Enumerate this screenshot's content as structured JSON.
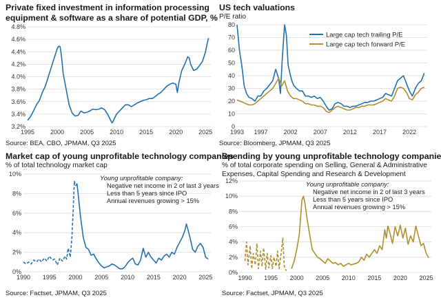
{
  "charts": [
    {
      "id": "p1",
      "title_lines": [
        "Private fixed investment in information processing",
        "equipment & software as a share of potential GDP, %"
      ],
      "subtitle_lines": [],
      "source": "Source: BEA, CBO, JPMAM, Q3 2025",
      "annotation": null,
      "colors": {
        "series": "#1f6fb2"
      }
    },
    {
      "id": "p2",
      "title_lines": [
        "US tech valuations"
      ],
      "subtitle_lines": [
        "P/E ratio"
      ],
      "source": "Source: Bloomberg, JPMAM, Q3 2025",
      "annotation": null,
      "colors": {
        "trailing": "#1f6fb2",
        "forward": "#b08d2a"
      }
    },
    {
      "id": "p3",
      "title_lines": [
        "Market cap of young unprofitable technology companies"
      ],
      "subtitle_lines": [
        "% of total technology market cap"
      ],
      "source": "Source: Factset, JPMAM, Q3 2025",
      "annotation": {
        "heading": "Young unprofitable company:",
        "lines": [
          "Negative net income in 2 of last 3 years",
          "Less than 5 years since IPO",
          "Annual revenues growing > 15%"
        ]
      },
      "colors": {
        "series": "#1f6fb2"
      }
    },
    {
      "id": "p4",
      "title_lines": [
        "Spending by young unprofitable technology companies"
      ],
      "subtitle_lines": [
        "% of total corporate spending on Selling, General & Administrative",
        "Expenses, Capital Spending and Research & Development"
      ],
      "source": "Source: Factset, JPMAM, Q3 2025",
      "annotation": {
        "heading": "Young unprofitable company:",
        "lines": [
          "Negative net income in 2 of last 3 years",
          "Less than 5 years since IPO",
          "Annual revenues growing > 15%"
        ]
      },
      "colors": {
        "series": "#b08d2a"
      }
    }
  ],
  "chart_data": [
    {
      "type": "line",
      "title": "Private fixed investment in information processing equipment & software as a share of potential GDP, %",
      "xlim": [
        1995,
        2025.9
      ],
      "ylim": [
        3.2,
        4.8
      ],
      "x_ticks": [
        1995,
        2000,
        2005,
        2010,
        2015,
        2020,
        2025
      ],
      "y_ticks": [
        3.2,
        3.4,
        3.6,
        3.8,
        4.0,
        4.2,
        4.4,
        4.6,
        4.8
      ],
      "y_tick_labels": [
        "3.2%",
        "3.4%",
        "3.6%",
        "3.8%",
        "4.0%",
        "4.2%",
        "4.4%",
        "4.6%",
        "4.8%"
      ],
      "series": [
        {
          "x": [
            1995.0,
            1995.5,
            1996.0,
            1996.5,
            1997.0,
            1997.5,
            1998.0,
            1998.5,
            1999.0,
            1999.5,
            2000.0,
            2000.25,
            2000.5,
            2000.75,
            2001.0,
            2001.5,
            2002.0,
            2002.5,
            2003.0,
            2003.5,
            2004.0,
            2004.5,
            2005.0,
            2005.5,
            2006.0,
            2006.5,
            2007.0,
            2007.5,
            2008.0,
            2008.5,
            2009.0,
            2009.25,
            2009.5,
            2010.0,
            2010.5,
            2011.0,
            2011.5,
            2012.0,
            2012.5,
            2013.0,
            2013.5,
            2014.0,
            2014.5,
            2015.0,
            2015.5,
            2016.0,
            2016.5,
            2017.0,
            2017.5,
            2018.0,
            2018.5,
            2019.0,
            2019.5,
            2020.0,
            2020.25,
            2020.5,
            2021.0,
            2021.5,
            2022.0,
            2022.25,
            2022.5,
            2023.0,
            2023.5,
            2024.0,
            2024.5,
            2025.0,
            2025.25,
            2025.5
          ],
          "y": [
            3.3,
            3.36,
            3.45,
            3.55,
            3.62,
            3.75,
            3.85,
            4.0,
            4.15,
            4.3,
            4.45,
            4.49,
            4.48,
            4.3,
            4.05,
            3.8,
            3.55,
            3.42,
            3.37,
            3.38,
            3.45,
            3.42,
            3.43,
            3.45,
            3.48,
            3.47,
            3.48,
            3.5,
            3.47,
            3.4,
            3.3,
            3.26,
            3.3,
            3.4,
            3.45,
            3.5,
            3.55,
            3.55,
            3.52,
            3.55,
            3.58,
            3.6,
            3.62,
            3.63,
            3.65,
            3.65,
            3.68,
            3.72,
            3.75,
            3.8,
            3.85,
            3.88,
            3.9,
            3.88,
            3.75,
            3.9,
            4.1,
            4.2,
            4.32,
            4.3,
            4.2,
            4.1,
            4.12,
            4.18,
            4.25,
            4.4,
            4.52,
            4.62
          ]
        }
      ]
    },
    {
      "type": "line",
      "title": "US tech valuations",
      "ylabel": "P/E ratio",
      "xlim": [
        1993,
        2025
      ],
      "ylim": [
        0,
        80
      ],
      "x_ticks": [
        1993,
        1997,
        2002,
        2007,
        2012,
        2017,
        2022
      ],
      "y_ticks": [
        0,
        10,
        20,
        30,
        40,
        50,
        60,
        70,
        80
      ],
      "legend": "top-right",
      "series": [
        {
          "name": "Large cap tech trailing P/E",
          "x": [
            1993.0,
            1993.4,
            1993.8,
            1994.2,
            1994.6,
            1995.0,
            1995.5,
            1996.0,
            1996.5,
            1997.0,
            1997.5,
            1998.0,
            1998.5,
            1999.0,
            1999.5,
            2000.0,
            2000.3,
            2000.6,
            2001.0,
            2001.3,
            2001.6,
            2002.0,
            2002.3,
            2002.6,
            2003.0,
            2003.5,
            2004.0,
            2004.5,
            2005.0,
            2005.5,
            2006.0,
            2006.5,
            2007.0,
            2007.5,
            2008.0,
            2008.5,
            2009.0,
            2009.5,
            2010.0,
            2010.5,
            2011.0,
            2011.5,
            2012.0,
            2012.5,
            2013.0,
            2013.5,
            2014.0,
            2014.5,
            2015.0,
            2015.5,
            2016.0,
            2016.5,
            2017.0,
            2017.5,
            2018.0,
            2018.5,
            2019.0,
            2019.5,
            2020.0,
            2020.5,
            2021.0,
            2021.5,
            2022.0,
            2022.5,
            2023.0,
            2023.5,
            2024.0,
            2024.5
          ],
          "y": [
            80,
            60,
            48,
            32,
            26,
            23,
            22,
            20,
            24,
            24,
            28,
            30,
            33,
            36,
            45,
            38,
            26,
            52,
            80,
            72,
            48,
            40,
            35,
            32,
            30,
            28,
            28,
            24,
            24,
            23,
            24,
            22,
            23,
            20,
            16,
            13,
            14,
            18,
            19,
            18,
            16,
            16,
            15,
            16,
            16,
            17,
            18,
            19,
            19,
            20,
            20,
            21,
            22,
            23,
            26,
            25,
            24,
            30,
            36,
            38,
            40,
            34,
            28,
            24,
            30,
            34,
            36,
            42
          ]
        },
        {
          "name": "Large cap tech forward P/E",
          "x": [
            1993.0,
            1993.5,
            1994.0,
            1994.5,
            1995.0,
            1995.5,
            1996.0,
            1996.5,
            1997.0,
            1997.5,
            1998.0,
            1998.5,
            1999.0,
            1999.5,
            2000.0,
            2000.5,
            2001.0,
            2001.5,
            2002.0,
            2002.5,
            2003.0,
            2003.5,
            2004.0,
            2004.5,
            2005.0,
            2005.5,
            2006.0,
            2006.5,
            2007.0,
            2007.5,
            2008.0,
            2008.5,
            2009.0,
            2009.5,
            2010.0,
            2010.5,
            2011.0,
            2011.5,
            2012.0,
            2012.5,
            2013.0,
            2013.5,
            2014.0,
            2014.5,
            2015.0,
            2015.5,
            2016.0,
            2016.5,
            2017.0,
            2017.5,
            2018.0,
            2018.5,
            2019.0,
            2019.5,
            2020.0,
            2020.5,
            2021.0,
            2021.5,
            2022.0,
            2022.5,
            2023.0,
            2023.5,
            2024.0,
            2024.5
          ],
          "y": [
            21,
            20,
            19,
            18,
            17,
            17,
            18,
            20,
            22,
            24,
            26,
            28,
            30,
            34,
            38,
            32,
            36,
            28,
            24,
            22,
            22,
            21,
            20,
            18,
            18,
            17,
            17,
            16,
            16,
            15,
            12,
            11,
            13,
            15,
            16,
            15,
            14,
            13,
            13,
            14,
            15,
            15,
            16,
            16,
            17,
            17,
            17,
            18,
            19,
            20,
            22,
            21,
            20,
            24,
            30,
            31,
            30,
            27,
            22,
            21,
            25,
            27,
            30,
            31
          ]
        }
      ]
    },
    {
      "type": "line",
      "title": "Market cap of young unprofitable technology companies",
      "ylabel": "% of total technology market cap",
      "xlim": [
        1990,
        2026
      ],
      "ylim": [
        0,
        10
      ],
      "x_ticks": [
        1990,
        1995,
        2000,
        2005,
        2010,
        2015,
        2020,
        2025
      ],
      "y_ticks": [
        0,
        2,
        4,
        6,
        8,
        10
      ],
      "y_tick_labels": [
        "0%",
        "2%",
        "4%",
        "6%",
        "8%",
        "10%"
      ],
      "series": [
        {
          "name": "dashed segment (before 2000)",
          "x": [
            1990.0,
            1990.5,
            1991.0,
            1991.5,
            1992.0,
            1992.5,
            1993.0,
            1993.5,
            1994.0,
            1994.5,
            1995.0,
            1995.5,
            1996.0,
            1996.5,
            1997.0,
            1997.5,
            1998.0,
            1998.3,
            1998.6,
            1999.0,
            1999.3,
            1999.6,
            1999.8,
            2000.0
          ],
          "y": [
            1.0,
            0.8,
            1.0,
            0.8,
            1.2,
            1.0,
            1.3,
            1.0,
            1.4,
            1.1,
            1.6,
            1.2,
            1.3,
            0.7,
            1.4,
            1.1,
            1.6,
            1.3,
            2.4,
            1.5,
            3.5,
            6.8,
            9.3,
            8.8
          ]
        },
        {
          "name": "solid segment (2000 onward)",
          "x": [
            2000.0,
            2000.3,
            2000.6,
            2001.0,
            2001.5,
            2002.0,
            2002.5,
            2003.0,
            2003.5,
            2004.0,
            2004.5,
            2005.0,
            2005.5,
            2006.0,
            2006.5,
            2007.0,
            2007.5,
            2008.0,
            2008.5,
            2009.0,
            2009.5,
            2010.0,
            2010.5,
            2011.0,
            2011.5,
            2012.0,
            2012.5,
            2013.0,
            2013.5,
            2014.0,
            2014.5,
            2015.0,
            2015.5,
            2016.0,
            2016.5,
            2017.0,
            2017.5,
            2018.0,
            2018.5,
            2019.0,
            2019.5,
            2020.0,
            2020.5,
            2021.0,
            2021.3,
            2021.6,
            2022.0,
            2022.5,
            2023.0,
            2023.5,
            2024.0,
            2024.5,
            2025.0,
            2025.5
          ],
          "y": [
            8.8,
            9.0,
            7.5,
            5.5,
            3.5,
            2.5,
            2.3,
            1.7,
            1.8,
            1.3,
            0.9,
            0.6,
            0.4,
            0.5,
            0.6,
            0.8,
            0.7,
            0.5,
            0.3,
            0.3,
            0.5,
            0.9,
            1.2,
            1.4,
            0.8,
            0.7,
            1.2,
            2.4,
            1.5,
            2.0,
            1.5,
            1.2,
            0.9,
            1.4,
            1.2,
            1.6,
            1.8,
            1.5,
            2.0,
            1.8,
            2.5,
            3.0,
            3.5,
            4.2,
            4.9,
            4.3,
            3.5,
            2.3,
            2.0,
            2.6,
            2.9,
            2.5,
            1.5,
            1.3
          ]
        }
      ]
    },
    {
      "type": "line",
      "title": "Spending by young unprofitable technology companies",
      "ylabel": "% of total corporate spending on Selling, General & Administrative Expenses, Capital Spending and Research & Development",
      "xlim": [
        1989,
        2026
      ],
      "ylim": [
        0,
        12
      ],
      "x_ticks": [
        1990,
        1995,
        2000,
        2005,
        2010,
        2015,
        2020,
        2025
      ],
      "y_ticks": [
        0,
        2,
        4,
        6,
        8,
        10,
        12
      ],
      "y_tick_labels": [
        "0%",
        "2%",
        "4%",
        "6%",
        "8%",
        "10%",
        "12%"
      ],
      "series": [
        {
          "name": "dashed segment (before 1999)",
          "x": [
            1990.0,
            1990.3,
            1990.6,
            1991.0,
            1991.3,
            1991.6,
            1992.0,
            1992.3,
            1992.6,
            1993.0,
            1993.3,
            1993.6,
            1994.0,
            1994.3,
            1994.6,
            1995.0,
            1995.3,
            1995.6,
            1996.0,
            1996.3,
            1996.6,
            1997.0,
            1997.3,
            1997.6,
            1998.0
          ],
          "y": [
            1.5,
            4.0,
            1.0,
            3.5,
            0.5,
            2.5,
            1.0,
            3.8,
            0.5,
            2.8,
            0.8,
            3.2,
            0.4,
            2.5,
            0.6,
            2.2,
            0.5,
            2.0,
            0.8,
            2.8,
            0.5,
            2.6,
            4.5,
            0.8,
            0.2
          ]
        },
        {
          "name": "solid segment (1999 onward)",
          "x": [
            1999.0,
            1999.5,
            2000.0,
            2000.5,
            2001.0,
            2001.3,
            2001.6,
            2002.0,
            2002.5,
            2003.0,
            2003.5,
            2004.0,
            2004.5,
            2005.0,
            2005.5,
            2006.0,
            2006.5,
            2007.0,
            2007.5,
            2008.0,
            2008.5,
            2009.0,
            2009.5,
            2010.0,
            2010.5,
            2011.0,
            2011.5,
            2012.0,
            2012.5,
            2013.0,
            2013.5,
            2014.0,
            2014.5,
            2015.0,
            2015.5,
            2016.0,
            2016.5,
            2017.0,
            2017.3,
            2017.6,
            2018.0,
            2018.5,
            2019.0,
            2019.5,
            2020.0,
            2020.5,
            2021.0,
            2021.5,
            2022.0,
            2022.5,
            2023.0,
            2023.5,
            2024.0,
            2024.5,
            2025.0,
            2025.5
          ],
          "y": [
            0.5,
            1.5,
            3.0,
            5.0,
            9.5,
            10.0,
            9.0,
            7.0,
            5.0,
            3.0,
            2.5,
            2.0,
            1.8,
            1.5,
            1.2,
            1.8,
            1.5,
            1.2,
            1.3,
            1.0,
            1.2,
            0.8,
            1.0,
            1.2,
            1.0,
            1.1,
            1.2,
            1.4,
            2.0,
            1.6,
            2.4,
            2.0,
            2.5,
            3.0,
            2.5,
            3.5,
            3.0,
            5.6,
            4.5,
            6.1,
            5.2,
            3.8,
            6.0,
            4.8,
            6.2,
            4.5,
            5.8,
            3.7,
            4.8,
            4.0,
            6.1,
            4.8,
            3.5,
            3.8,
            2.5,
            1.9
          ]
        }
      ]
    }
  ]
}
